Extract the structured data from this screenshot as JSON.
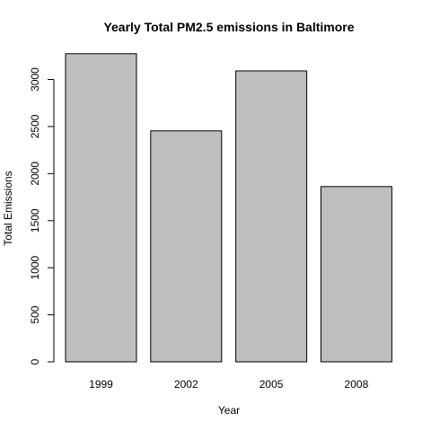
{
  "chart_data": {
    "type": "bar",
    "title": "Yearly Total PM2.5 emissions in Baltimore",
    "xlabel": "Year",
    "ylabel": "Total Emissions",
    "categories": [
      "1999",
      "2002",
      "2005",
      "2008"
    ],
    "values": [
      3274,
      2454,
      3091,
      1862
    ],
    "ylim": [
      0,
      3300
    ],
    "yticks": [
      0,
      500,
      1000,
      1500,
      2000,
      2500,
      3000
    ],
    "bar_color": "#bebebe",
    "bar_border_color": "#000000",
    "grid": false,
    "legend": "none"
  }
}
